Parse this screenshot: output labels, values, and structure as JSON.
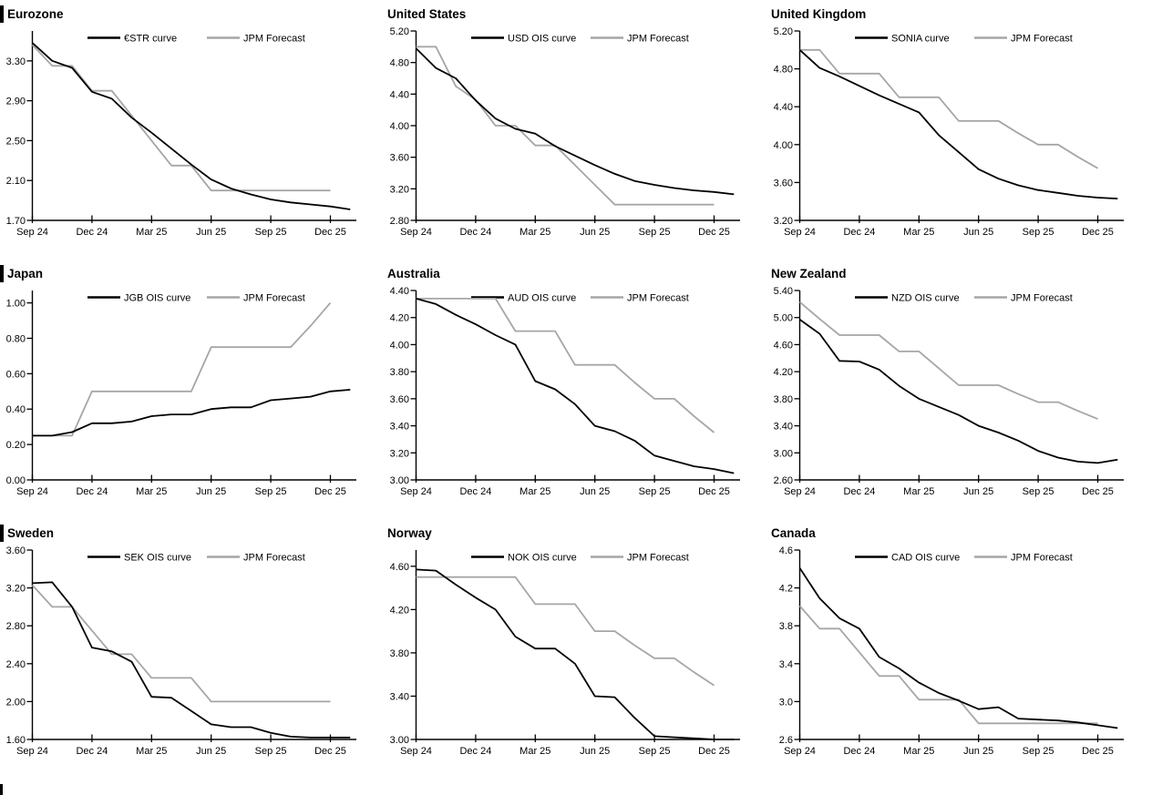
{
  "chart_data": {
    "type": "line",
    "description": "Policy rate OIS curves vs JPM forecasts across nine economies",
    "grid": false,
    "legend_position": "top",
    "x_categories": [
      "Sep 24",
      "Oct 24",
      "Nov 24",
      "Dec 24",
      "Jan 25",
      "Feb 25",
      "Mar 25",
      "Apr 25",
      "May 25",
      "Jun 25",
      "Jul 25",
      "Aug 25",
      "Sep 25",
      "Oct 25",
      "Nov 25",
      "Dec 25",
      "Jan 26"
    ],
    "x_tick_labels": [
      "Sep 24",
      "Dec 24",
      "Mar 25",
      "Jun 25",
      "Sep 25",
      "Dec 25"
    ],
    "colors": {
      "ois_line": "#000000",
      "forecast_line": "#a6a6a6"
    },
    "charts": [
      {
        "title": "Eurozone",
        "left_title_bar": true,
        "y_tick_labels": [
          "1.70",
          "2.10",
          "2.50",
          "2.90",
          "3.30"
        ],
        "ylim": [
          1.7,
          3.6
        ],
        "series": [
          {
            "name": "€STR curve",
            "role": "ois",
            "values": [
              3.48,
              3.3,
              3.23,
              2.99,
              2.92,
              2.73,
              2.58,
              2.42,
              2.26,
              2.11,
              2.02,
              1.96,
              1.91,
              1.88,
              1.86,
              1.84,
              1.81
            ]
          },
          {
            "name": "JPM Forecast",
            "role": "forecast",
            "values": [
              3.46,
              3.25,
              3.25,
              3.0,
              3.0,
              2.75,
              2.5,
              2.25,
              2.25,
              2.0,
              2.0,
              2.0,
              2.0,
              2.0,
              2.0,
              2.0
            ]
          }
        ]
      },
      {
        "title": "United States",
        "left_title_bar": false,
        "y_tick_labels": [
          "2.80",
          "3.20",
          "3.60",
          "4.00",
          "4.40",
          "4.80",
          "5.20"
        ],
        "ylim": [
          2.8,
          5.2
        ],
        "series": [
          {
            "name": "USD OIS curve",
            "role": "ois",
            "values": [
              4.98,
              4.73,
              4.6,
              4.32,
              4.09,
              3.96,
              3.9,
              3.74,
              3.62,
              3.5,
              3.39,
              3.3,
              3.25,
              3.21,
              3.18,
              3.16,
              3.13
            ]
          },
          {
            "name": "JPM Forecast",
            "role": "forecast",
            "values": [
              5.0,
              5.0,
              4.5,
              4.33,
              4.0,
              4.0,
              3.75,
              3.75,
              3.5,
              3.25,
              3.0,
              3.0,
              3.0,
              3.0,
              3.0,
              3.0
            ]
          }
        ]
      },
      {
        "title": "United Kingdom",
        "left_title_bar": false,
        "y_tick_labels": [
          "3.20",
          "3.60",
          "4.00",
          "4.40",
          "4.80",
          "5.20"
        ],
        "ylim": [
          3.2,
          5.2
        ],
        "series": [
          {
            "name": "SONIA curve",
            "role": "ois",
            "values": [
              5.0,
              4.81,
              4.72,
              4.62,
              4.52,
              4.43,
              4.34,
              4.1,
              3.92,
              3.74,
              3.64,
              3.57,
              3.52,
              3.49,
              3.46,
              3.44,
              3.43
            ]
          },
          {
            "name": "JPM Forecast",
            "role": "forecast",
            "values": [
              5.0,
              5.0,
              4.75,
              4.75,
              4.75,
              4.5,
              4.5,
              4.5,
              4.25,
              4.25,
              4.25,
              4.12,
              4.0,
              4.0,
              3.87,
              3.75
            ]
          }
        ]
      },
      {
        "title": "Japan",
        "left_title_bar": true,
        "y_tick_labels": [
          "0.00",
          "0.20",
          "0.40",
          "0.60",
          "0.80",
          "1.00"
        ],
        "ylim": [
          0.0,
          1.07
        ],
        "series": [
          {
            "name": "JGB OIS curve",
            "role": "ois",
            "values": [
              0.25,
              0.25,
              0.27,
              0.32,
              0.32,
              0.33,
              0.36,
              0.37,
              0.37,
              0.4,
              0.41,
              0.41,
              0.45,
              0.46,
              0.47,
              0.5,
              0.51
            ]
          },
          {
            "name": "JPM Forecast",
            "role": "forecast",
            "values": [
              0.25,
              0.25,
              0.25,
              0.5,
              0.5,
              0.5,
              0.5,
              0.5,
              0.5,
              0.75,
              0.75,
              0.75,
              0.75,
              0.75,
              0.87,
              1.0
            ]
          }
        ]
      },
      {
        "title": "Australia",
        "left_title_bar": false,
        "y_tick_labels": [
          "3.00",
          "3.20",
          "3.40",
          "3.60",
          "3.80",
          "4.00",
          "4.20",
          "4.40"
        ],
        "ylim": [
          3.0,
          4.4
        ],
        "series": [
          {
            "name": "AUD OIS curve",
            "role": "ois",
            "values": [
              4.34,
              4.3,
              4.22,
              4.15,
              4.07,
              4.0,
              3.73,
              3.67,
              3.56,
              3.4,
              3.36,
              3.29,
              3.18,
              3.14,
              3.1,
              3.08,
              3.05
            ]
          },
          {
            "name": "JPM Forecast",
            "role": "forecast",
            "values": [
              4.34,
              4.34,
              4.34,
              4.34,
              4.34,
              4.1,
              4.1,
              4.1,
              3.85,
              3.85,
              3.85,
              3.72,
              3.6,
              3.6,
              3.47,
              3.35
            ]
          }
        ]
      },
      {
        "title": "New Zealand",
        "left_title_bar": false,
        "y_tick_labels": [
          "2.60",
          "3.00",
          "3.40",
          "3.80",
          "4.20",
          "4.60",
          "5.00",
          "5.40"
        ],
        "ylim": [
          2.6,
          5.4
        ],
        "series": [
          {
            "name": "NZD OIS curve",
            "role": "ois",
            "values": [
              4.97,
              4.76,
              4.36,
              4.35,
              4.23,
              3.99,
              3.8,
              3.68,
              3.56,
              3.4,
              3.3,
              3.18,
              3.03,
              2.93,
              2.87,
              2.85,
              2.9
            ]
          },
          {
            "name": "JPM Forecast",
            "role": "forecast",
            "values": [
              5.23,
              4.98,
              4.74,
              4.74,
              4.74,
              4.5,
              4.5,
              4.25,
              4.0,
              4.0,
              4.0,
              3.87,
              3.75,
              3.75,
              3.62,
              3.5
            ]
          }
        ]
      },
      {
        "title": "Sweden",
        "left_title_bar": true,
        "y_tick_labels": [
          "1.60",
          "2.00",
          "2.40",
          "2.80",
          "3.20",
          "3.60"
        ],
        "ylim": [
          1.6,
          3.6
        ],
        "series": [
          {
            "name": "SEK OIS curve",
            "role": "ois",
            "values": [
              3.25,
              3.26,
              3.0,
              2.57,
              2.53,
              2.42,
              2.05,
              2.04,
              1.9,
              1.76,
              1.73,
              1.73,
              1.67,
              1.63,
              1.62,
              1.62,
              1.62
            ]
          },
          {
            "name": "JPM Forecast",
            "role": "forecast",
            "values": [
              3.23,
              3.0,
              3.0,
              2.75,
              2.5,
              2.5,
              2.25,
              2.25,
              2.25,
              2.0,
              2.0,
              2.0,
              2.0,
              2.0,
              2.0,
              2.0
            ]
          }
        ]
      },
      {
        "title": "Norway",
        "left_title_bar": false,
        "y_tick_labels": [
          "3.00",
          "3.40",
          "3.80",
          "4.20",
          "4.60"
        ],
        "ylim": [
          3.0,
          4.75
        ],
        "series": [
          {
            "name": "NOK OIS curve",
            "role": "ois",
            "values": [
              4.57,
              4.56,
              4.43,
              4.31,
              4.2,
              3.95,
              3.84,
              3.84,
              3.7,
              3.4,
              3.39,
              3.2,
              3.03,
              3.02,
              3.01,
              3.0,
              3.0
            ]
          },
          {
            "name": "JPM Forecast",
            "role": "forecast",
            "values": [
              4.5,
              4.5,
              4.5,
              4.5,
              4.5,
              4.5,
              4.25,
              4.25,
              4.25,
              4.0,
              4.0,
              3.87,
              3.75,
              3.75,
              3.62,
              3.5
            ]
          }
        ]
      },
      {
        "title": "Canada",
        "left_title_bar": false,
        "y_tick_labels": [
          "2.6",
          "3.0",
          "3.4",
          "3.8",
          "4.2",
          "4.6"
        ],
        "ylim": [
          2.6,
          4.6
        ],
        "series": [
          {
            "name": "CAD OIS curve",
            "role": "ois",
            "values": [
              4.41,
              4.09,
              3.88,
              3.77,
              3.47,
              3.35,
              3.2,
              3.09,
              3.01,
              2.92,
              2.94,
              2.82,
              2.81,
              2.8,
              2.78,
              2.75,
              2.72
            ]
          },
          {
            "name": "JPM Forecast",
            "role": "forecast",
            "values": [
              4.01,
              3.77,
              3.77,
              3.52,
              3.27,
              3.27,
              3.02,
              3.02,
              3.02,
              2.77,
              2.77,
              2.77,
              2.77,
              2.77,
              2.77,
              2.77
            ]
          }
        ]
      }
    ]
  },
  "footer": {
    "next_section_marker": true
  }
}
